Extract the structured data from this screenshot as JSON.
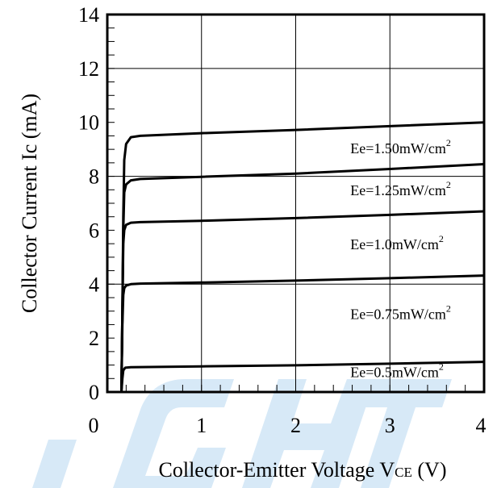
{
  "chart_data": {
    "type": "line",
    "xlabel": "Collector-Emitter Voltage V",
    "xlabel_sub": "CE",
    "xlabel_unit": " (V)",
    "ylabel": "Collector Current Ic (mA)",
    "xlim": [
      0,
      4
    ],
    "ylim": [
      0,
      14
    ],
    "x_ticks": [
      0,
      1,
      2,
      3,
      4
    ],
    "y_ticks": [
      0,
      2,
      4,
      6,
      8,
      10,
      12,
      14
    ],
    "grid": true,
    "series": [
      {
        "name": "Ee=1.50mW/cm",
        "sup": "2",
        "points": [
          [
            0.15,
            0
          ],
          [
            0.16,
            3
          ],
          [
            0.17,
            6.5
          ],
          [
            0.18,
            8.6
          ],
          [
            0.2,
            9.2
          ],
          [
            0.25,
            9.45
          ],
          [
            0.35,
            9.5
          ],
          [
            1,
            9.6
          ],
          [
            2,
            9.72
          ],
          [
            3,
            9.86
          ],
          [
            4,
            10.0
          ]
        ]
      },
      {
        "name": "Ee=1.25mW/cm",
        "sup": "2",
        "points": [
          [
            0.15,
            0
          ],
          [
            0.16,
            3
          ],
          [
            0.17,
            6
          ],
          [
            0.18,
            7.4
          ],
          [
            0.2,
            7.7
          ],
          [
            0.25,
            7.85
          ],
          [
            0.35,
            7.9
          ],
          [
            1,
            7.98
          ],
          [
            2,
            8.1
          ],
          [
            3,
            8.27
          ],
          [
            4,
            8.45
          ]
        ]
      },
      {
        "name": "Ee=1.0mW/cm",
        "sup": "2",
        "points": [
          [
            0.15,
            0
          ],
          [
            0.16,
            3
          ],
          [
            0.17,
            5.5
          ],
          [
            0.18,
            6
          ],
          [
            0.2,
            6.2
          ],
          [
            0.25,
            6.28
          ],
          [
            0.35,
            6.3
          ],
          [
            1,
            6.35
          ],
          [
            2,
            6.45
          ],
          [
            3,
            6.57
          ],
          [
            4,
            6.7
          ]
        ]
      },
      {
        "name": "Ee=0.75mW/cm",
        "sup": "2",
        "points": [
          [
            0.15,
            0
          ],
          [
            0.16,
            2.5
          ],
          [
            0.17,
            3.6
          ],
          [
            0.18,
            3.85
          ],
          [
            0.2,
            3.95
          ],
          [
            0.25,
            4.0
          ],
          [
            0.35,
            4.02
          ],
          [
            1,
            4.06
          ],
          [
            2,
            4.13
          ],
          [
            3,
            4.22
          ],
          [
            4,
            4.32
          ]
        ]
      },
      {
        "name": "Ee=0.5mW/cm",
        "sup": "2",
        "points": [
          [
            0.15,
            0
          ],
          [
            0.16,
            0.5
          ],
          [
            0.17,
            0.8
          ],
          [
            0.19,
            0.9
          ],
          [
            0.25,
            0.92
          ],
          [
            1,
            0.95
          ],
          [
            2,
            0.99
          ],
          [
            3,
            1.05
          ],
          [
            4,
            1.12
          ]
        ]
      }
    ],
    "label_anchors": [
      {
        "x": 2.58,
        "y": 8.85
      },
      {
        "x": 2.58,
        "y": 7.3
      },
      {
        "x": 2.58,
        "y": 5.3
      },
      {
        "x": 2.58,
        "y": 2.7
      },
      {
        "x": 2.58,
        "y": 0.55
      }
    ]
  }
}
